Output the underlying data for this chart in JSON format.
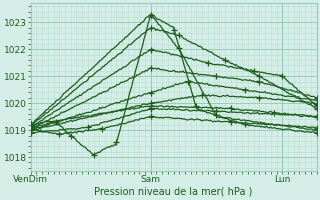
{
  "xlabel": "Pression niveau de la mer( hPa )",
  "xtick_labels": [
    "VenDim",
    "Sam",
    "Lun"
  ],
  "xtick_positions": [
    0.0,
    0.42,
    0.88
  ],
  "ylim": [
    1017.5,
    1023.7
  ],
  "yticks": [
    1018,
    1019,
    1020,
    1021,
    1022,
    1023
  ],
  "xlim": [
    0.0,
    1.0
  ],
  "bg_color": "#d4ede6",
  "grid_major_color": "#99cbb8",
  "grid_minor_color": "#b8ddd0",
  "line_color": "#1e5c1e",
  "figw": 3.2,
  "figh": 2.0,
  "dpi": 100
}
